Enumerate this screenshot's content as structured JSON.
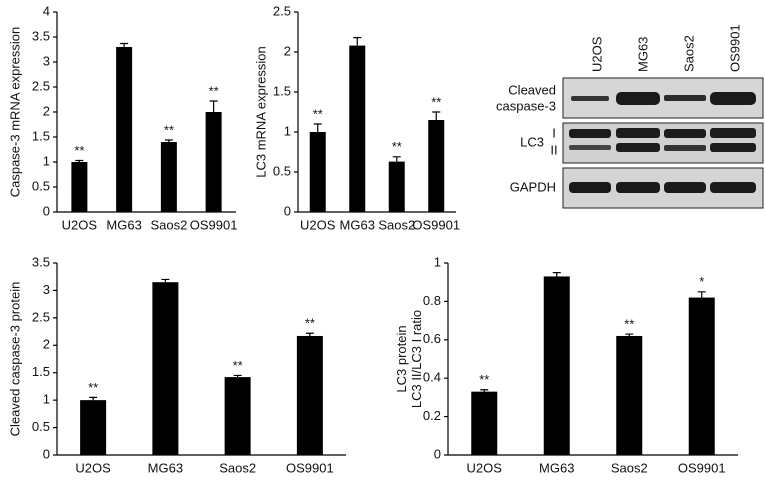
{
  "chart_data": [
    {
      "type": "bar",
      "ylabel": "Caspase-3 mRNA expression",
      "categories": [
        "U2OS",
        "MG63",
        "Saos2",
        "OS9901"
      ],
      "values": [
        1,
        3.3,
        1.4,
        2.0
      ],
      "errors": [
        0.03,
        0.07,
        0.04,
        0.22
      ],
      "annotations": [
        "**",
        null,
        "**",
        "**"
      ],
      "color": "#000000",
      "ylim": [
        0,
        4
      ],
      "yticks": [
        0,
        0.5,
        1,
        1.5,
        2,
        2.5,
        3,
        3.5,
        4
      ]
    },
    {
      "type": "bar",
      "ylabel": "LC3 mRNA expression",
      "categories": [
        "U2OS",
        "MG63",
        "Saos2",
        "OS9901"
      ],
      "values": [
        1,
        2.08,
        0.63,
        1.15
      ],
      "errors": [
        0.1,
        0.1,
        0.06,
        0.1
      ],
      "annotations": [
        "**",
        null,
        "**",
        "**"
      ],
      "color": "#000000",
      "ylim": [
        0,
        2.5
      ],
      "yticks": [
        0,
        0.5,
        1,
        1.5,
        2,
        2.5
      ]
    },
    {
      "type": "bar",
      "ylabel": "Cleaved caspase-3 protein",
      "categories": [
        "U2OS",
        "MG63",
        "Saos2",
        "OS9901"
      ],
      "values": [
        1,
        3.15,
        1.42,
        2.17
      ],
      "errors": [
        0.05,
        0.05,
        0.03,
        0.05
      ],
      "annotations": [
        "**",
        null,
        "**",
        "**"
      ],
      "color": "#000000",
      "ylim": [
        0,
        3.5
      ],
      "yticks": [
        0,
        0.5,
        1,
        1.5,
        2,
        2.5,
        3,
        3.5
      ]
    },
    {
      "type": "bar",
      "ylabel": [
        "LC3 protein",
        "LC3 II/LC3 I ratio"
      ],
      "categories": [
        "U2OS",
        "MG63",
        "Saos2",
        "OS9901"
      ],
      "values": [
        0.33,
        0.93,
        0.62,
        0.82
      ],
      "errors": [
        0.01,
        0.02,
        0.01,
        0.03
      ],
      "annotations": [
        "**",
        null,
        "**",
        "*"
      ],
      "color": "#000000",
      "ylim": [
        0,
        1
      ],
      "yticks": [
        0,
        0.2,
        0.4,
        0.6,
        0.8,
        1
      ]
    }
  ],
  "blot": {
    "lanes": [
      "U2OS",
      "MG63",
      "Saos2",
      "OS9901"
    ],
    "rows": [
      {
        "label": [
          "Cleaved",
          "caspase-3"
        ]
      },
      {
        "label": "LC3",
        "bands": [
          "I",
          "II"
        ]
      },
      {
        "label": "GAPDH"
      }
    ]
  }
}
